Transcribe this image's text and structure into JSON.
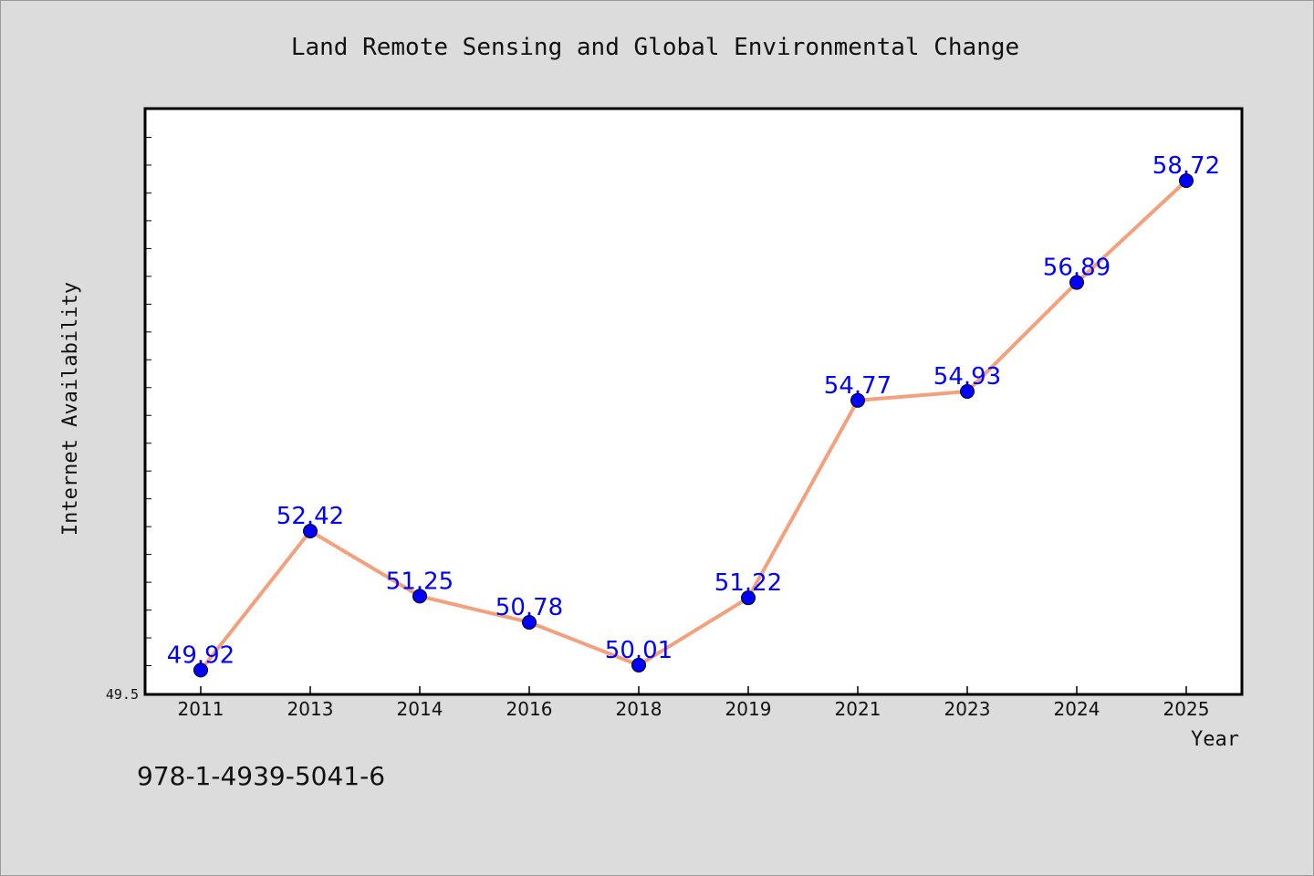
{
  "footer": {
    "isbn": "978-1-4939-5041-6"
  },
  "colors": {
    "line": "#f4a07c",
    "marker": "#0000ff",
    "label": "#0000ff",
    "background": "#dcdcdc",
    "plot_bg": "#ffffff"
  },
  "chart_data": {
    "type": "line",
    "title": "Land Remote Sensing and Global Environmental Change",
    "xlabel": "Year",
    "ylabel": "Internet Availability",
    "categories": [
      "2011",
      "2013",
      "2014",
      "2016",
      "2018",
      "2019",
      "2021",
      "2023",
      "2024",
      "2025"
    ],
    "values": [
      49.92,
      52.42,
      51.25,
      50.78,
      50.01,
      51.22,
      54.77,
      54.93,
      56.89,
      58.72
    ],
    "data_labels": [
      "49.92",
      "52.42",
      "51.25",
      "50.78",
      "50.01",
      "51.22",
      "54.77",
      "54.93",
      "56.89",
      "58.72"
    ],
    "ylim": [
      49.5,
      60.0
    ],
    "ytick_labels": [
      "49.5"
    ],
    "grid": false,
    "legend": "none"
  }
}
